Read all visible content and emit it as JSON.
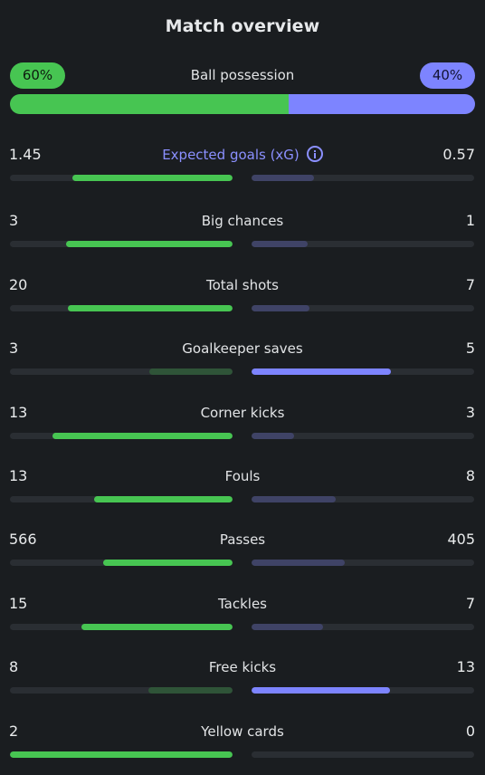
{
  "header": {
    "title": "Match overview"
  },
  "possession": {
    "label": "Ball possession",
    "home_label": "60%",
    "away_label": "40%",
    "home_fraction": 0.6,
    "away_fraction": 0.4
  },
  "colors": {
    "home_win": "#47c552",
    "home_lose": "#2f5438",
    "away_win": "#7d84ff",
    "away_lose": "#3f4366",
    "track": "#2a2e33",
    "accent": "#8b90ff"
  },
  "stats": [
    {
      "label": "Expected goals (xG)",
      "home": "1.45",
      "away": "0.57",
      "home_fill": 0.72,
      "away_fill": 0.28,
      "has_info": true,
      "accent": true
    },
    {
      "label": "Big chances",
      "home": "3",
      "away": "1",
      "home_fill": 0.75,
      "away_fill": 0.25
    },
    {
      "label": "Total shots",
      "home": "20",
      "away": "7",
      "home_fill": 0.74,
      "away_fill": 0.26
    },
    {
      "label": "Goalkeeper saves",
      "home": "3",
      "away": "5",
      "home_fill": 0.375,
      "away_fill": 0.625
    },
    {
      "label": "Corner kicks",
      "home": "13",
      "away": "3",
      "home_fill": 0.81,
      "away_fill": 0.19
    },
    {
      "label": "Fouls",
      "home": "13",
      "away": "8",
      "home_fill": 0.62,
      "away_fill": 0.38
    },
    {
      "label": "Passes",
      "home": "566",
      "away": "405",
      "home_fill": 0.58,
      "away_fill": 0.42
    },
    {
      "label": "Tackles",
      "home": "15",
      "away": "7",
      "home_fill": 0.68,
      "away_fill": 0.32
    },
    {
      "label": "Free kicks",
      "home": "8",
      "away": "13",
      "home_fill": 0.38,
      "away_fill": 0.62
    },
    {
      "label": "Yellow cards",
      "home": "2",
      "away": "0",
      "home_fill": 1.0,
      "away_fill": 0.0
    }
  ]
}
